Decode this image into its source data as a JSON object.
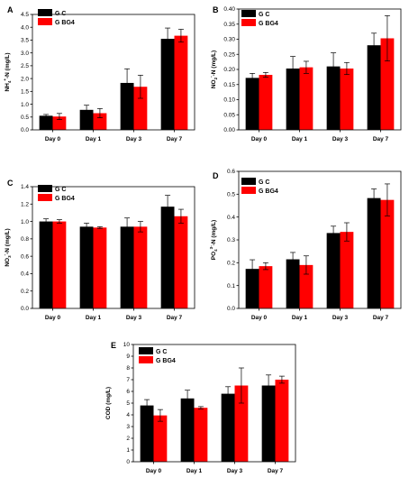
{
  "chart_data": [
    {
      "panel": "A",
      "type": "bar",
      "categories": [
        "Day 0",
        "Day 1",
        "Day 3",
        "Day 7"
      ],
      "ylabel_main": "NH",
      "ylabel_sub": "4",
      "ylabel_sup": "+",
      "ylabel_rest": "-N (mg/L)",
      "ylim": [
        0,
        4.5
      ],
      "yticks": [
        "0.0",
        "0.5",
        "1.0",
        "1.5",
        "2.0",
        "2.5",
        "3.0",
        "3.5",
        "4.0",
        "4.5"
      ],
      "series": [
        {
          "name": "G C",
          "color": "#000000",
          "values": [
            0.55,
            0.78,
            1.83,
            3.55
          ],
          "errors": [
            0.05,
            0.18,
            0.55,
            0.42
          ]
        },
        {
          "name": "G BG4",
          "color": "#ff0000",
          "values": [
            0.52,
            0.65,
            1.68,
            3.67
          ],
          "errors": [
            0.12,
            0.18,
            0.45,
            0.25
          ]
        }
      ]
    },
    {
      "panel": "B",
      "type": "bar",
      "categories": [
        "Day 0",
        "Day 1",
        "Day 3",
        "Day 7"
      ],
      "ylabel_main": "NO",
      "ylabel_sub": "2",
      "ylabel_sup": "-",
      "ylabel_rest": "-N (mg/L)",
      "ylim": [
        0,
        0.4
      ],
      "yticks": [
        "0.00",
        "0.05",
        "0.10",
        "0.15",
        "0.20",
        "0.25",
        "0.30",
        "0.35",
        "0.40"
      ],
      "series": [
        {
          "name": "G C",
          "color": "#000000",
          "values": [
            0.172,
            0.203,
            0.21,
            0.28
          ],
          "errors": [
            0.015,
            0.04,
            0.045,
            0.04
          ]
        },
        {
          "name": "G BG4",
          "color": "#ff0000",
          "values": [
            0.182,
            0.207,
            0.203,
            0.303
          ],
          "errors": [
            0.008,
            0.02,
            0.02,
            0.075
          ]
        }
      ]
    },
    {
      "panel": "C",
      "type": "bar",
      "categories": [
        "Day 0",
        "Day 1",
        "Day 3",
        "Day 7"
      ],
      "ylabel_main": "NO",
      "ylabel_sub": "3",
      "ylabel_sup": "-",
      "ylabel_rest": "-N (mg/L)",
      "ylim": [
        0,
        1.4
      ],
      "yticks": [
        "0.0",
        "0.2",
        "0.4",
        "0.6",
        "0.8",
        "1.0",
        "1.2",
        "1.4"
      ],
      "series": [
        {
          "name": "G C",
          "color": "#000000",
          "values": [
            1.0,
            0.94,
            0.94,
            1.17
          ],
          "errors": [
            0.03,
            0.04,
            0.1,
            0.13
          ]
        },
        {
          "name": "G BG4",
          "color": "#ff0000",
          "values": [
            1.0,
            0.93,
            0.94,
            1.06
          ],
          "errors": [
            0.02,
            0.01,
            0.06,
            0.08
          ]
        }
      ]
    },
    {
      "panel": "D",
      "type": "bar",
      "categories": [
        "Day 0",
        "Day 1",
        "Day 3",
        "Day 7"
      ],
      "ylabel_main": "PO",
      "ylabel_sub": "4",
      "ylabel_sup": "3-",
      "ylabel_rest": "-N (mg/L)",
      "ylim": [
        0,
        0.6
      ],
      "yticks": [
        "0.0",
        "0.1",
        "0.2",
        "0.3",
        "0.4",
        "0.5",
        "0.6"
      ],
      "series": [
        {
          "name": "G C",
          "color": "#000000",
          "values": [
            0.173,
            0.215,
            0.33,
            0.483
          ],
          "errors": [
            0.04,
            0.03,
            0.03,
            0.04
          ]
        },
        {
          "name": "G BG4",
          "color": "#ff0000",
          "values": [
            0.185,
            0.19,
            0.335,
            0.475
          ],
          "errors": [
            0.015,
            0.04,
            0.04,
            0.07
          ]
        }
      ]
    },
    {
      "panel": "E",
      "type": "bar",
      "categories": [
        "Day 0",
        "Day 1",
        "Day 3",
        "Day 7"
      ],
      "ylabel_main": "COD (mg/L)",
      "ylabel_sub": "",
      "ylabel_sup": "",
      "ylabel_rest": "",
      "ylim": [
        0,
        10
      ],
      "yticks": [
        "0",
        "1",
        "2",
        "3",
        "4",
        "5",
        "6",
        "7",
        "8",
        "9",
        "10"
      ],
      "series": [
        {
          "name": "G C",
          "color": "#000000",
          "values": [
            4.8,
            5.4,
            5.8,
            6.5
          ],
          "errors": [
            0.5,
            0.7,
            0.6,
            0.9
          ]
        },
        {
          "name": "G BG4",
          "color": "#ff0000",
          "values": [
            3.95,
            4.6,
            6.5,
            7.0
          ],
          "errors": [
            0.5,
            0.1,
            1.5,
            0.3
          ]
        }
      ]
    }
  ]
}
